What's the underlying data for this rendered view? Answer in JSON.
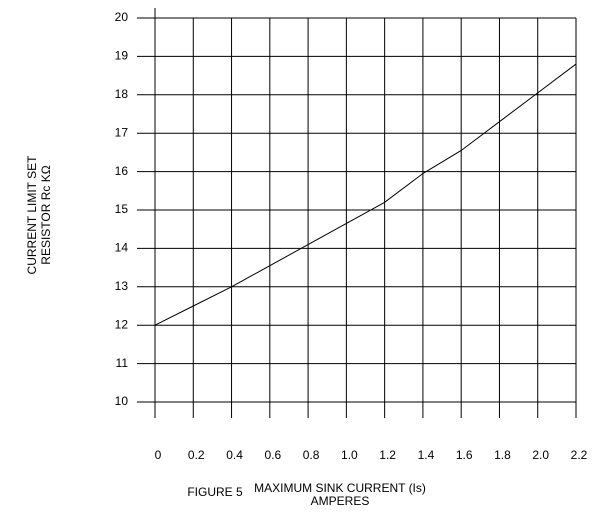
{
  "chart_data": {
    "type": "line",
    "caption": "FIGURE 5",
    "xlabel": [
      "MAXIMUM SINK CURRENT (Is)",
      "AMPERES"
    ],
    "ylabel": [
      "CURRENT LIMIT SET",
      "RESISTOR Rc KΩ"
    ],
    "x": [
      0,
      0.2,
      0.4,
      0.6,
      0.8,
      1.0,
      1.2,
      1.4,
      1.6,
      1.8,
      2.0,
      2.2
    ],
    "series": [
      {
        "name": null,
        "color": "#000000",
        "values": [
          12,
          12.5,
          13,
          13.55,
          14.1,
          14.65,
          15.2,
          15.95,
          16.55,
          17.3,
          18.05,
          18.8
        ]
      }
    ],
    "xlim": [
      0,
      2.2
    ],
    "xticks": [
      0,
      0.2,
      0.4,
      0.6,
      0.8,
      {
        "value": 1.0,
        "label": "1.0"
      },
      1.2,
      1.4,
      1.6,
      1.8,
      {
        "value": 2.0,
        "label": "2.0"
      },
      2.2
    ],
    "ylim": [
      10,
      20
    ],
    "yticks": [
      10,
      11,
      12,
      13,
      14,
      15,
      16,
      17,
      18,
      19,
      20
    ],
    "grid": true
  }
}
